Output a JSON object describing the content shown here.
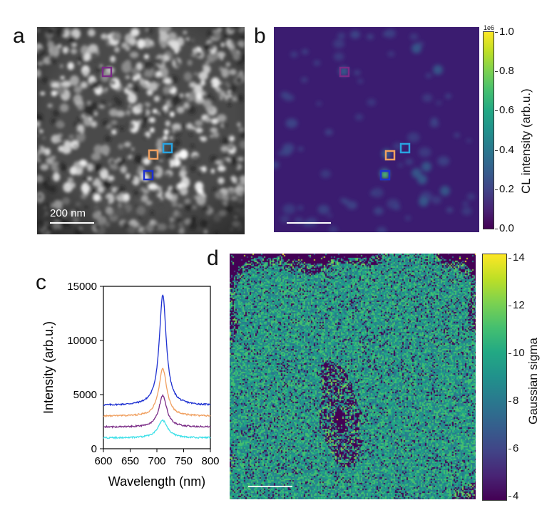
{
  "panels": {
    "a": {
      "letter": "a",
      "scalebar_label": "200 nm",
      "markers": [
        {
          "name": "purple",
          "color": "#7a2b86"
        },
        {
          "name": "orange",
          "color": "#f0a060"
        },
        {
          "name": "cyan",
          "color": "#29a3e0"
        },
        {
          "name": "blue",
          "color": "#1c2fd1"
        }
      ]
    },
    "b": {
      "letter": "b",
      "colorbar": {
        "title": "CL intensity (arb.u.)",
        "exponent": "1e6",
        "ticks": [
          "1.0",
          "0.8",
          "0.6",
          "0.4",
          "0.2",
          "0.0"
        ],
        "colormap": "viridis"
      },
      "markers": [
        {
          "name": "purple",
          "color": "#7a2b86"
        },
        {
          "name": "orange",
          "color": "#f0a060"
        },
        {
          "name": "cyan",
          "color": "#29a3e0"
        },
        {
          "name": "blue",
          "color": "#1c2fd1"
        }
      ]
    },
    "c": {
      "letter": "c"
    },
    "d": {
      "letter": "d",
      "colorbar": {
        "title": "Gaussian sigma",
        "ticks": [
          "14",
          "12",
          "10",
          "8",
          "6",
          "4"
        ],
        "colormap": "viridis"
      }
    }
  },
  "chart_data": {
    "type": "line",
    "xlabel": "Wavelength (nm)",
    "ylabel": "Intensity (arb.u.)",
    "xlim": [
      600,
      800
    ],
    "ylim": [
      0,
      15000
    ],
    "xticks": [
      "600",
      "650",
      "700",
      "750",
      "800"
    ],
    "yticks": [
      "0",
      "5000",
      "10000",
      "15000"
    ],
    "series": [
      {
        "color": "#1c2fd1",
        "baseline": 4000,
        "peak_x": 711,
        "peak_y": 14200,
        "width": 8
      },
      {
        "color": "#f0a060",
        "baseline": 3000,
        "peak_x": 711,
        "peak_y": 7400,
        "width": 9
      },
      {
        "color": "#7a2b86",
        "baseline": 2000,
        "peak_x": 711,
        "peak_y": 4900,
        "width": 9
      },
      {
        "color": "#3fe0e8",
        "baseline": 1000,
        "peak_x": 711,
        "peak_y": 2600,
        "width": 11
      }
    ]
  }
}
